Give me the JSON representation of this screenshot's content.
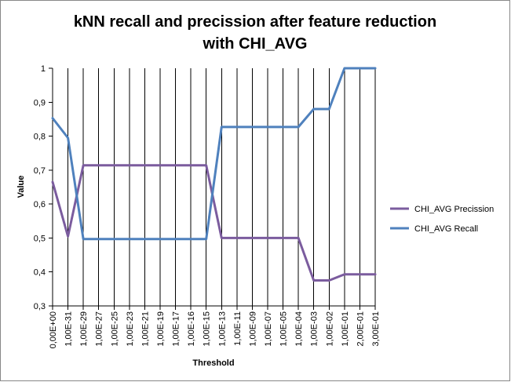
{
  "chart_data": {
    "type": "line",
    "title_lines": [
      "kNN recall and precission after feature reduction",
      "with CHI_AVG"
    ],
    "xlabel": "Threshold",
    "ylabel": "Value",
    "ylim": [
      0.3,
      1.0
    ],
    "y_ticks": [
      "0,3",
      "0,4",
      "0,5",
      "0,6",
      "0,7",
      "0,8",
      "0,9",
      "1"
    ],
    "y_tick_values": [
      0.3,
      0.4,
      0.5,
      0.6,
      0.7,
      0.8,
      0.9,
      1.0
    ],
    "categories": [
      "0,00E+00",
      "1,00E-31",
      "1,00E-29",
      "1,00E-27",
      "1,00E-25",
      "1,00E-23",
      "1,00E-21",
      "1,00E-19",
      "1,00E-17",
      "1,00E-16",
      "1,00E-15",
      "1,00E-13",
      "1,00E-11",
      "1,00E-09",
      "1,00E-07",
      "1,00E-05",
      "1,00E-04",
      "1,00E-03",
      "1,00E-02",
      "1,00E-01",
      "2,00E-01",
      "3,00E-01"
    ],
    "grid": "vertical",
    "legend_position": "right",
    "series": [
      {
        "name": "CHI_AVG Precission",
        "color": "#7b5c9e",
        "values": [
          0.665,
          0.505,
          0.714,
          0.714,
          0.714,
          0.714,
          0.714,
          0.714,
          0.714,
          0.714,
          0.714,
          0.5,
          0.5,
          0.5,
          0.5,
          0.5,
          0.5,
          0.375,
          0.375,
          0.393,
          0.393,
          0.393
        ]
      },
      {
        "name": "CHI_AVG Recall",
        "color": "#4f81bd",
        "values": [
          0.853,
          0.795,
          0.497,
          0.497,
          0.497,
          0.497,
          0.497,
          0.497,
          0.497,
          0.497,
          0.497,
          0.827,
          0.827,
          0.827,
          0.827,
          0.827,
          0.827,
          0.88,
          0.88,
          1.0,
          1.0,
          1.0
        ]
      }
    ]
  }
}
